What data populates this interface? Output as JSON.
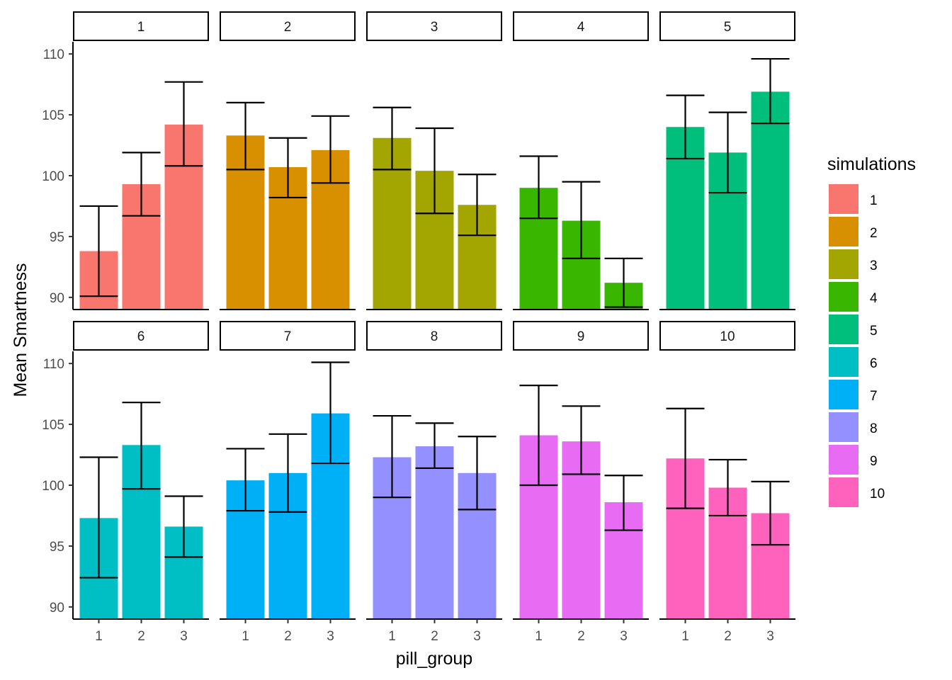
{
  "chart_data": {
    "type": "bar",
    "facet_by": "simulations",
    "facet_layout": "5 columns x 2 rows",
    "x": [
      "1",
      "2",
      "3"
    ],
    "xlabel": "pill_group",
    "ylabel": "Mean Smartness",
    "ylim": [
      89,
      111
    ],
    "yticks": [
      90,
      95,
      100,
      105,
      110
    ],
    "error_bars": true,
    "grid": false,
    "legend": {
      "title": "simulations",
      "position": "right",
      "entries": [
        "1",
        "2",
        "3",
        "4",
        "5",
        "6",
        "7",
        "8",
        "9",
        "10"
      ]
    },
    "panels": [
      {
        "label": "1",
        "color": "#F8766D",
        "values": [
          93.8,
          99.3,
          104.2
        ],
        "error_low": [
          90.1,
          96.7,
          100.8
        ],
        "error_high": [
          97.5,
          101.9,
          107.7
        ]
      },
      {
        "label": "2",
        "color": "#D89000",
        "values": [
          103.3,
          100.7,
          102.1
        ],
        "error_low": [
          100.5,
          98.2,
          99.4
        ],
        "error_high": [
          106.0,
          103.1,
          104.9
        ]
      },
      {
        "label": "3",
        "color": "#A3A500",
        "values": [
          103.1,
          100.4,
          97.6
        ],
        "error_low": [
          100.5,
          96.9,
          95.1
        ],
        "error_high": [
          105.6,
          103.9,
          100.1
        ]
      },
      {
        "label": "4",
        "color": "#39B600",
        "values": [
          99.0,
          96.3,
          91.2
        ],
        "error_low": [
          96.5,
          93.2,
          89.2
        ],
        "error_high": [
          101.6,
          99.5,
          93.2
        ]
      },
      {
        "label": "5",
        "color": "#00BF7D",
        "values": [
          104.0,
          101.9,
          106.9
        ],
        "error_low": [
          101.4,
          98.6,
          104.3
        ],
        "error_high": [
          106.6,
          105.2,
          109.6
        ]
      },
      {
        "label": "6",
        "color": "#00BFC4",
        "values": [
          97.3,
          103.3,
          96.6
        ],
        "error_low": [
          92.4,
          99.7,
          94.1
        ],
        "error_high": [
          102.3,
          106.8,
          99.1
        ]
      },
      {
        "label": "7",
        "color": "#00B0F6",
        "values": [
          100.4,
          101.0,
          105.9
        ],
        "error_low": [
          97.9,
          97.8,
          101.8
        ],
        "error_high": [
          103.0,
          104.2,
          110.1
        ]
      },
      {
        "label": "8",
        "color": "#9590FF",
        "values": [
          102.3,
          103.2,
          101.0
        ],
        "error_low": [
          99.0,
          101.4,
          98.0
        ],
        "error_high": [
          105.7,
          105.1,
          104.0
        ]
      },
      {
        "label": "9",
        "color": "#E76BF3",
        "values": [
          104.1,
          103.6,
          98.6
        ],
        "error_low": [
          100.0,
          100.9,
          96.3
        ],
        "error_high": [
          108.2,
          106.5,
          100.8
        ]
      },
      {
        "label": "10",
        "color": "#FF62BC",
        "values": [
          102.2,
          99.8,
          97.7
        ],
        "error_low": [
          98.1,
          97.5,
          95.1
        ],
        "error_high": [
          106.3,
          102.1,
          100.3
        ]
      }
    ]
  }
}
